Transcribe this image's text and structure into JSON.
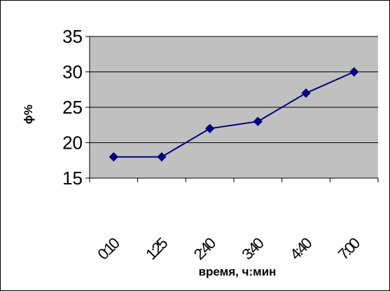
{
  "chart_data": {
    "type": "line",
    "title": "",
    "xlabel": "время, ч:мин",
    "ylabel": "ϕ%",
    "categories": [
      "0:10",
      "1:25",
      "2:40",
      "3:40",
      "4:40",
      "7:00"
    ],
    "series": [
      {
        "values": [
          18,
          18,
          22,
          23,
          27,
          30
        ]
      }
    ],
    "ylim": [
      15,
      35
    ],
    "yticks": [
      15,
      20,
      25,
      30,
      35
    ],
    "grid": "horizontal",
    "legend": "none",
    "colors": {
      "line": "#000080",
      "marker": "#000080",
      "plot_background": "#c0c0c0",
      "grid": "#000000"
    },
    "marker": "diamond"
  }
}
